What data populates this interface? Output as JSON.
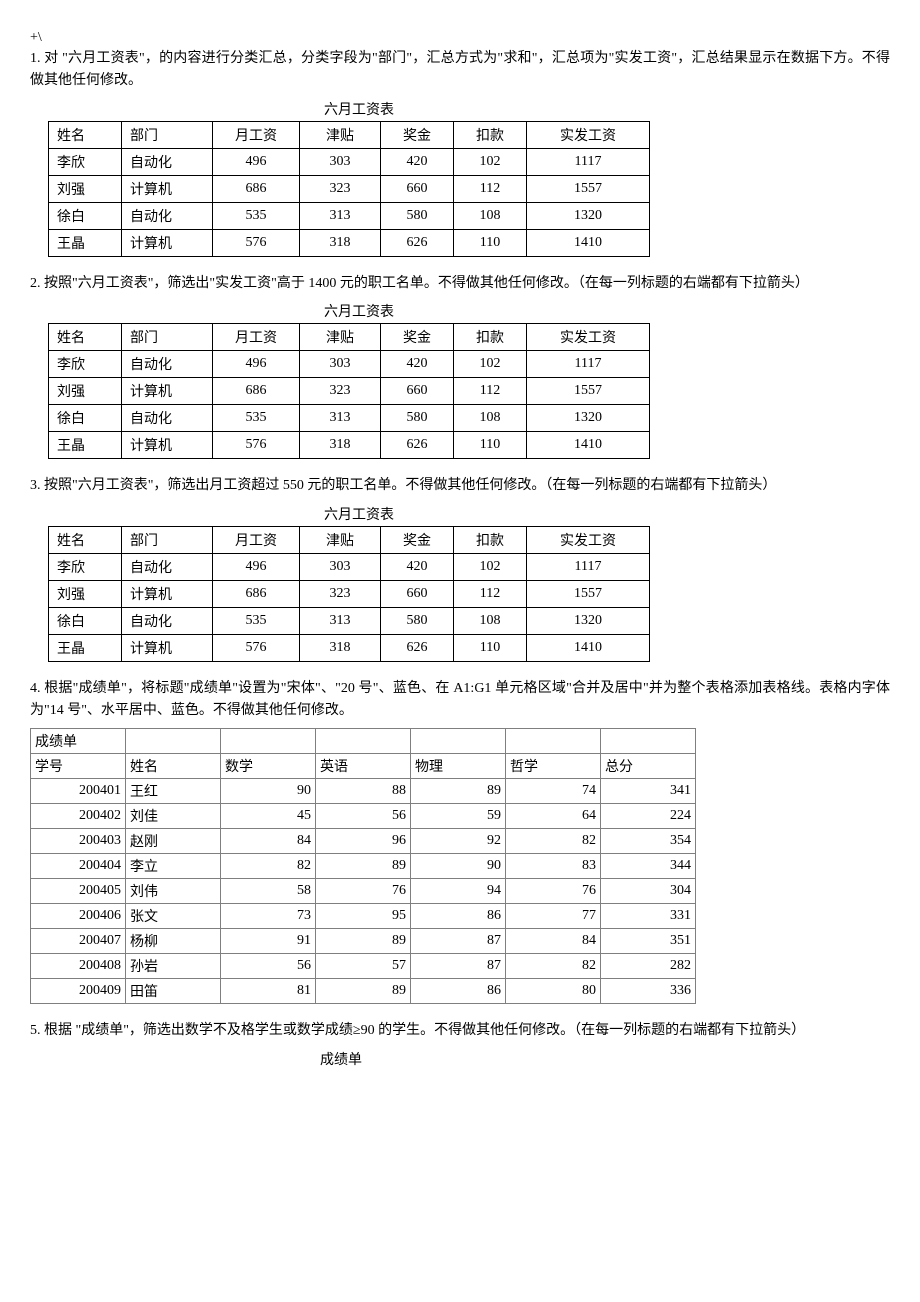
{
  "topMarker": "+\\",
  "q1": "1. 对 \"六月工资表\"，的内容进行分类汇总，分类字段为\"部门\"，汇总方式为\"求和\"，汇总项为\"实发工资\"，汇总结果显示在数据下方。不得做其他任何修改。",
  "q2": "2. 按照\"六月工资表\"，筛选出\"实发工资\"高于 1400 元的职工名单。不得做其他任何修改。（在每一列标题的右端都有下拉箭头）",
  "q3": "3. 按照\"六月工资表\"，筛选出月工资超过 550 元的职工名单。不得做其他任何修改。（在每一列标题的右端都有下拉箭头）",
  "q4": "4. 根据\"成绩单\"，将标题\"成绩单\"设置为\"宋体\"、\"20 号\"、蓝色、在 A1:G1 单元格区域\"合并及居中\"并为整个表格添加表格线。表格内字体为\"14 号\"、水平居中、蓝色。不得做其他任何修改。",
  "q5": "5. 根据 \"成绩单\"，筛选出数学不及格学生或数学成绩≥90 的学生。不得做其他任何修改。（在每一列标题的右端都有下拉箭头）",
  "salaryTitle": "六月工资表",
  "salaryHeaders": [
    "姓名",
    "部门",
    "月工资",
    "津贴",
    "奖金",
    "扣款",
    "实发工资"
  ],
  "salaryRows": [
    [
      "李欣",
      "自动化",
      "496",
      "303",
      "420",
      "102",
      "1117"
    ],
    [
      "刘强",
      "计算机",
      "686",
      "323",
      "660",
      "112",
      "1557"
    ],
    [
      "徐白",
      "自动化",
      "535",
      "313",
      "580",
      "108",
      "1320"
    ],
    [
      "王晶",
      "计算机",
      "576",
      "318",
      "626",
      "110",
      "1410"
    ]
  ],
  "scoreTitle": "成绩单",
  "scoreHeaders": [
    "学号",
    "姓名",
    "数学",
    "英语",
    "物理",
    "哲学",
    "总分"
  ],
  "scoreRows": [
    [
      "200401",
      "王红",
      "90",
      "88",
      "89",
      "74",
      "341"
    ],
    [
      "200402",
      "刘佳",
      "45",
      "56",
      "59",
      "64",
      "224"
    ],
    [
      "200403",
      "赵刚",
      "84",
      "96",
      "92",
      "82",
      "354"
    ],
    [
      "200404",
      "李立",
      "82",
      "89",
      "90",
      "83",
      "344"
    ],
    [
      "200405",
      "刘伟",
      "58",
      "76",
      "94",
      "76",
      "304"
    ],
    [
      "200406",
      "张文",
      "73",
      "95",
      "86",
      "77",
      "331"
    ],
    [
      "200407",
      "杨柳",
      "91",
      "89",
      "87",
      "84",
      "351"
    ],
    [
      "200408",
      "孙岩",
      "56",
      "57",
      "87",
      "82",
      "282"
    ],
    [
      "200409",
      "田笛",
      "81",
      "89",
      "86",
      "80",
      "336"
    ]
  ]
}
